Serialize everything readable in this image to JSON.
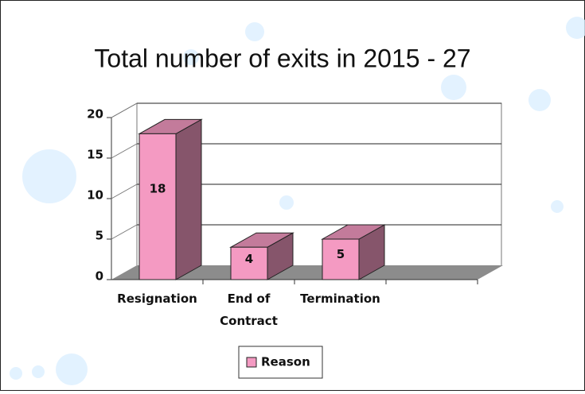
{
  "chart_data": {
    "type": "bar3d",
    "title": "Total number of exits in 2015 - 27",
    "categories": [
      "Resignation",
      "End of Contract",
      "Termination",
      null
    ],
    "series": [
      {
        "name": "Reason",
        "color": "#f49ac2",
        "values": [
          18,
          4,
          5,
          null
        ]
      }
    ],
    "ylim": [
      0,
      20
    ],
    "yticks": [
      0,
      5,
      10,
      15,
      20
    ],
    "grid": true,
    "legend": "bottom"
  }
}
